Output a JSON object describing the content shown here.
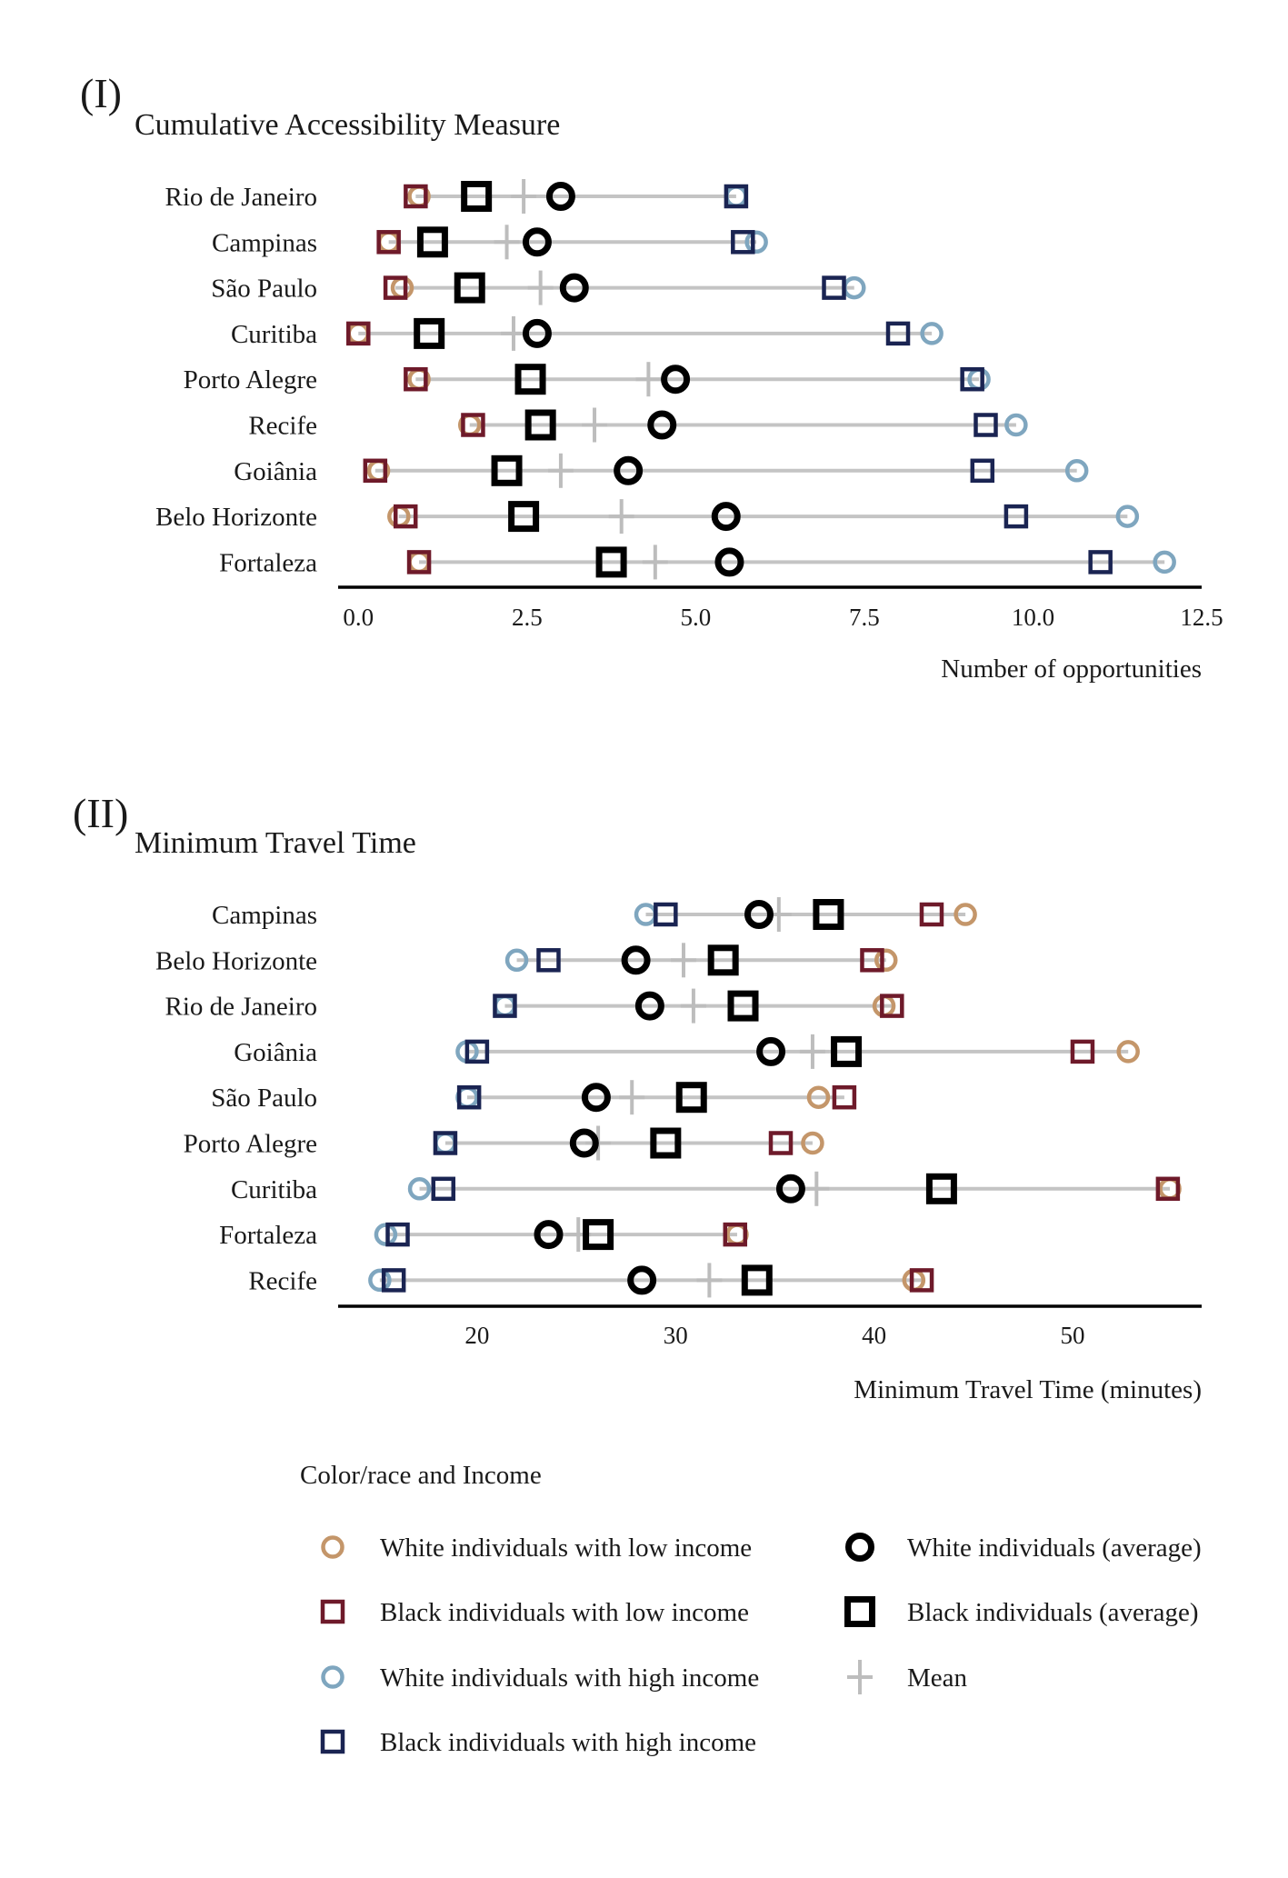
{
  "colors": {
    "white_low": "#C4966A",
    "black_low": "#6E1A2A",
    "white_high": "#7FA6BF",
    "black_high": "#1A2452",
    "white_avg": "#000000",
    "black_avg": "#000000",
    "mean": "#BDBDBD",
    "segment": "#C4C4C4"
  },
  "chart_data": [
    {
      "type": "dot-range",
      "tag": "(I)",
      "title": "Cumulative Accessibility Measure",
      "xlabel": "Number of opportunities",
      "xlim": [
        -0.3,
        12.5
      ],
      "xticks": [
        0.0,
        2.5,
        5.0,
        7.5,
        10.0,
        12.5
      ],
      "xtick_labels": [
        "0.0",
        "2.5",
        "5.0",
        "7.5",
        "10.0",
        "12.5"
      ],
      "rows": [
        {
          "label": "Rio de Janeiro",
          "white_low": 0.9,
          "black_low": 0.85,
          "black_avg": 1.75,
          "mean": 2.45,
          "white_avg": 3.0,
          "black_high": 5.6,
          "white_high": 5.6
        },
        {
          "label": "Campinas",
          "white_low": 0.45,
          "black_low": 0.45,
          "black_avg": 1.1,
          "mean": 2.2,
          "white_avg": 2.65,
          "black_high": 5.7,
          "white_high": 5.9
        },
        {
          "label": "São Paulo",
          "white_low": 0.65,
          "black_low": 0.55,
          "black_avg": 1.65,
          "mean": 2.7,
          "white_avg": 3.2,
          "black_high": 7.05,
          "white_high": 7.35
        },
        {
          "label": "Curitiba",
          "white_low": 0.0,
          "black_low": 0.0,
          "black_avg": 1.05,
          "mean": 2.3,
          "white_avg": 2.65,
          "black_high": 8.0,
          "white_high": 8.5
        },
        {
          "label": "Porto Alegre",
          "white_low": 0.9,
          "black_low": 0.85,
          "black_avg": 2.55,
          "mean": 4.3,
          "white_avg": 4.7,
          "black_high": 9.1,
          "white_high": 9.2
        },
        {
          "label": "Recife",
          "white_low": 1.65,
          "black_low": 1.7,
          "black_avg": 2.7,
          "mean": 3.5,
          "white_avg": 4.5,
          "black_high": 9.3,
          "white_high": 9.75
        },
        {
          "label": "Goiânia",
          "white_low": 0.3,
          "black_low": 0.25,
          "black_avg": 2.2,
          "mean": 3.0,
          "white_avg": 4.0,
          "black_high": 9.25,
          "white_high": 10.65
        },
        {
          "label": "Belo Horizonte",
          "white_low": 0.6,
          "black_low": 0.7,
          "black_avg": 2.45,
          "mean": 3.9,
          "white_avg": 5.45,
          "black_high": 9.75,
          "white_high": 11.4
        },
        {
          "label": "Fortaleza",
          "white_low": 0.9,
          "black_low": 0.9,
          "black_avg": 3.75,
          "mean": 4.4,
          "white_avg": 5.5,
          "black_high": 11.0,
          "white_high": 11.95
        }
      ]
    },
    {
      "type": "dot-range",
      "tag": "(II)",
      "title": "Minimum Travel Time",
      "xlabel": "Minimum Travel Time (minutes)",
      "xlim": [
        13,
        56.5
      ],
      "xticks": [
        20,
        30,
        40,
        50
      ],
      "xtick_labels": [
        "20",
        "30",
        "40",
        "50"
      ],
      "rows": [
        {
          "label": "Campinas",
          "white_high": 28.5,
          "black_high": 29.5,
          "white_avg": 34.2,
          "mean": 35.2,
          "black_avg": 37.7,
          "black_low": 42.9,
          "white_low": 44.6
        },
        {
          "label": "Belo Horizonte",
          "white_high": 22.0,
          "black_high": 23.6,
          "white_avg": 28.0,
          "mean": 30.4,
          "black_avg": 32.4,
          "black_low": 39.9,
          "white_low": 40.6
        },
        {
          "label": "Rio de Janeiro",
          "white_high": 21.4,
          "black_high": 21.4,
          "white_avg": 28.7,
          "mean": 30.9,
          "black_avg": 33.4,
          "black_low": 40.9,
          "white_low": 40.5
        },
        {
          "label": "Goiânia",
          "white_high": 19.5,
          "black_high": 20.0,
          "white_avg": 34.8,
          "mean": 36.9,
          "black_avg": 38.6,
          "black_low": 50.5,
          "white_low": 52.8
        },
        {
          "label": "São Paulo",
          "white_high": 19.5,
          "black_high": 19.6,
          "white_avg": 26.0,
          "mean": 27.8,
          "black_avg": 30.8,
          "black_low": 38.5,
          "white_low": 37.2
        },
        {
          "label": "Porto Alegre",
          "white_high": 18.4,
          "black_high": 18.4,
          "white_avg": 25.4,
          "mean": 26.1,
          "black_avg": 29.5,
          "black_low": 35.3,
          "white_low": 36.9
        },
        {
          "label": "Curitiba",
          "white_high": 17.1,
          "black_high": 18.3,
          "white_avg": 35.8,
          "mean": 37.1,
          "black_avg": 43.4,
          "black_low": 54.8,
          "white_low": 54.9
        },
        {
          "label": "Fortaleza",
          "white_high": 15.4,
          "black_high": 16.0,
          "white_avg": 23.6,
          "mean": 25.1,
          "black_avg": 26.1,
          "black_low": 33.0,
          "white_low": 33.1
        },
        {
          "label": "Recife",
          "white_high": 15.1,
          "black_high": 15.8,
          "white_avg": 28.3,
          "mean": 31.7,
          "black_avg": 34.1,
          "black_low": 42.4,
          "white_low": 42.0
        }
      ]
    }
  ],
  "legend": {
    "title": "Color/race and Income",
    "items": [
      {
        "key": "white_low",
        "label": "White individuals with low income",
        "shape": "circle"
      },
      {
        "key": "black_low",
        "label": "Black individuals with low income",
        "shape": "square"
      },
      {
        "key": "white_high",
        "label": "White individuals with high income",
        "shape": "circle"
      },
      {
        "key": "black_high",
        "label": "Black individuals with high income",
        "shape": "square"
      },
      {
        "key": "white_avg",
        "label": "White individuals (average)",
        "shape": "circle-bold"
      },
      {
        "key": "black_avg",
        "label": "Black individuals (average)",
        "shape": "square-bold"
      },
      {
        "key": "mean",
        "label": "Mean",
        "shape": "cross"
      }
    ]
  }
}
